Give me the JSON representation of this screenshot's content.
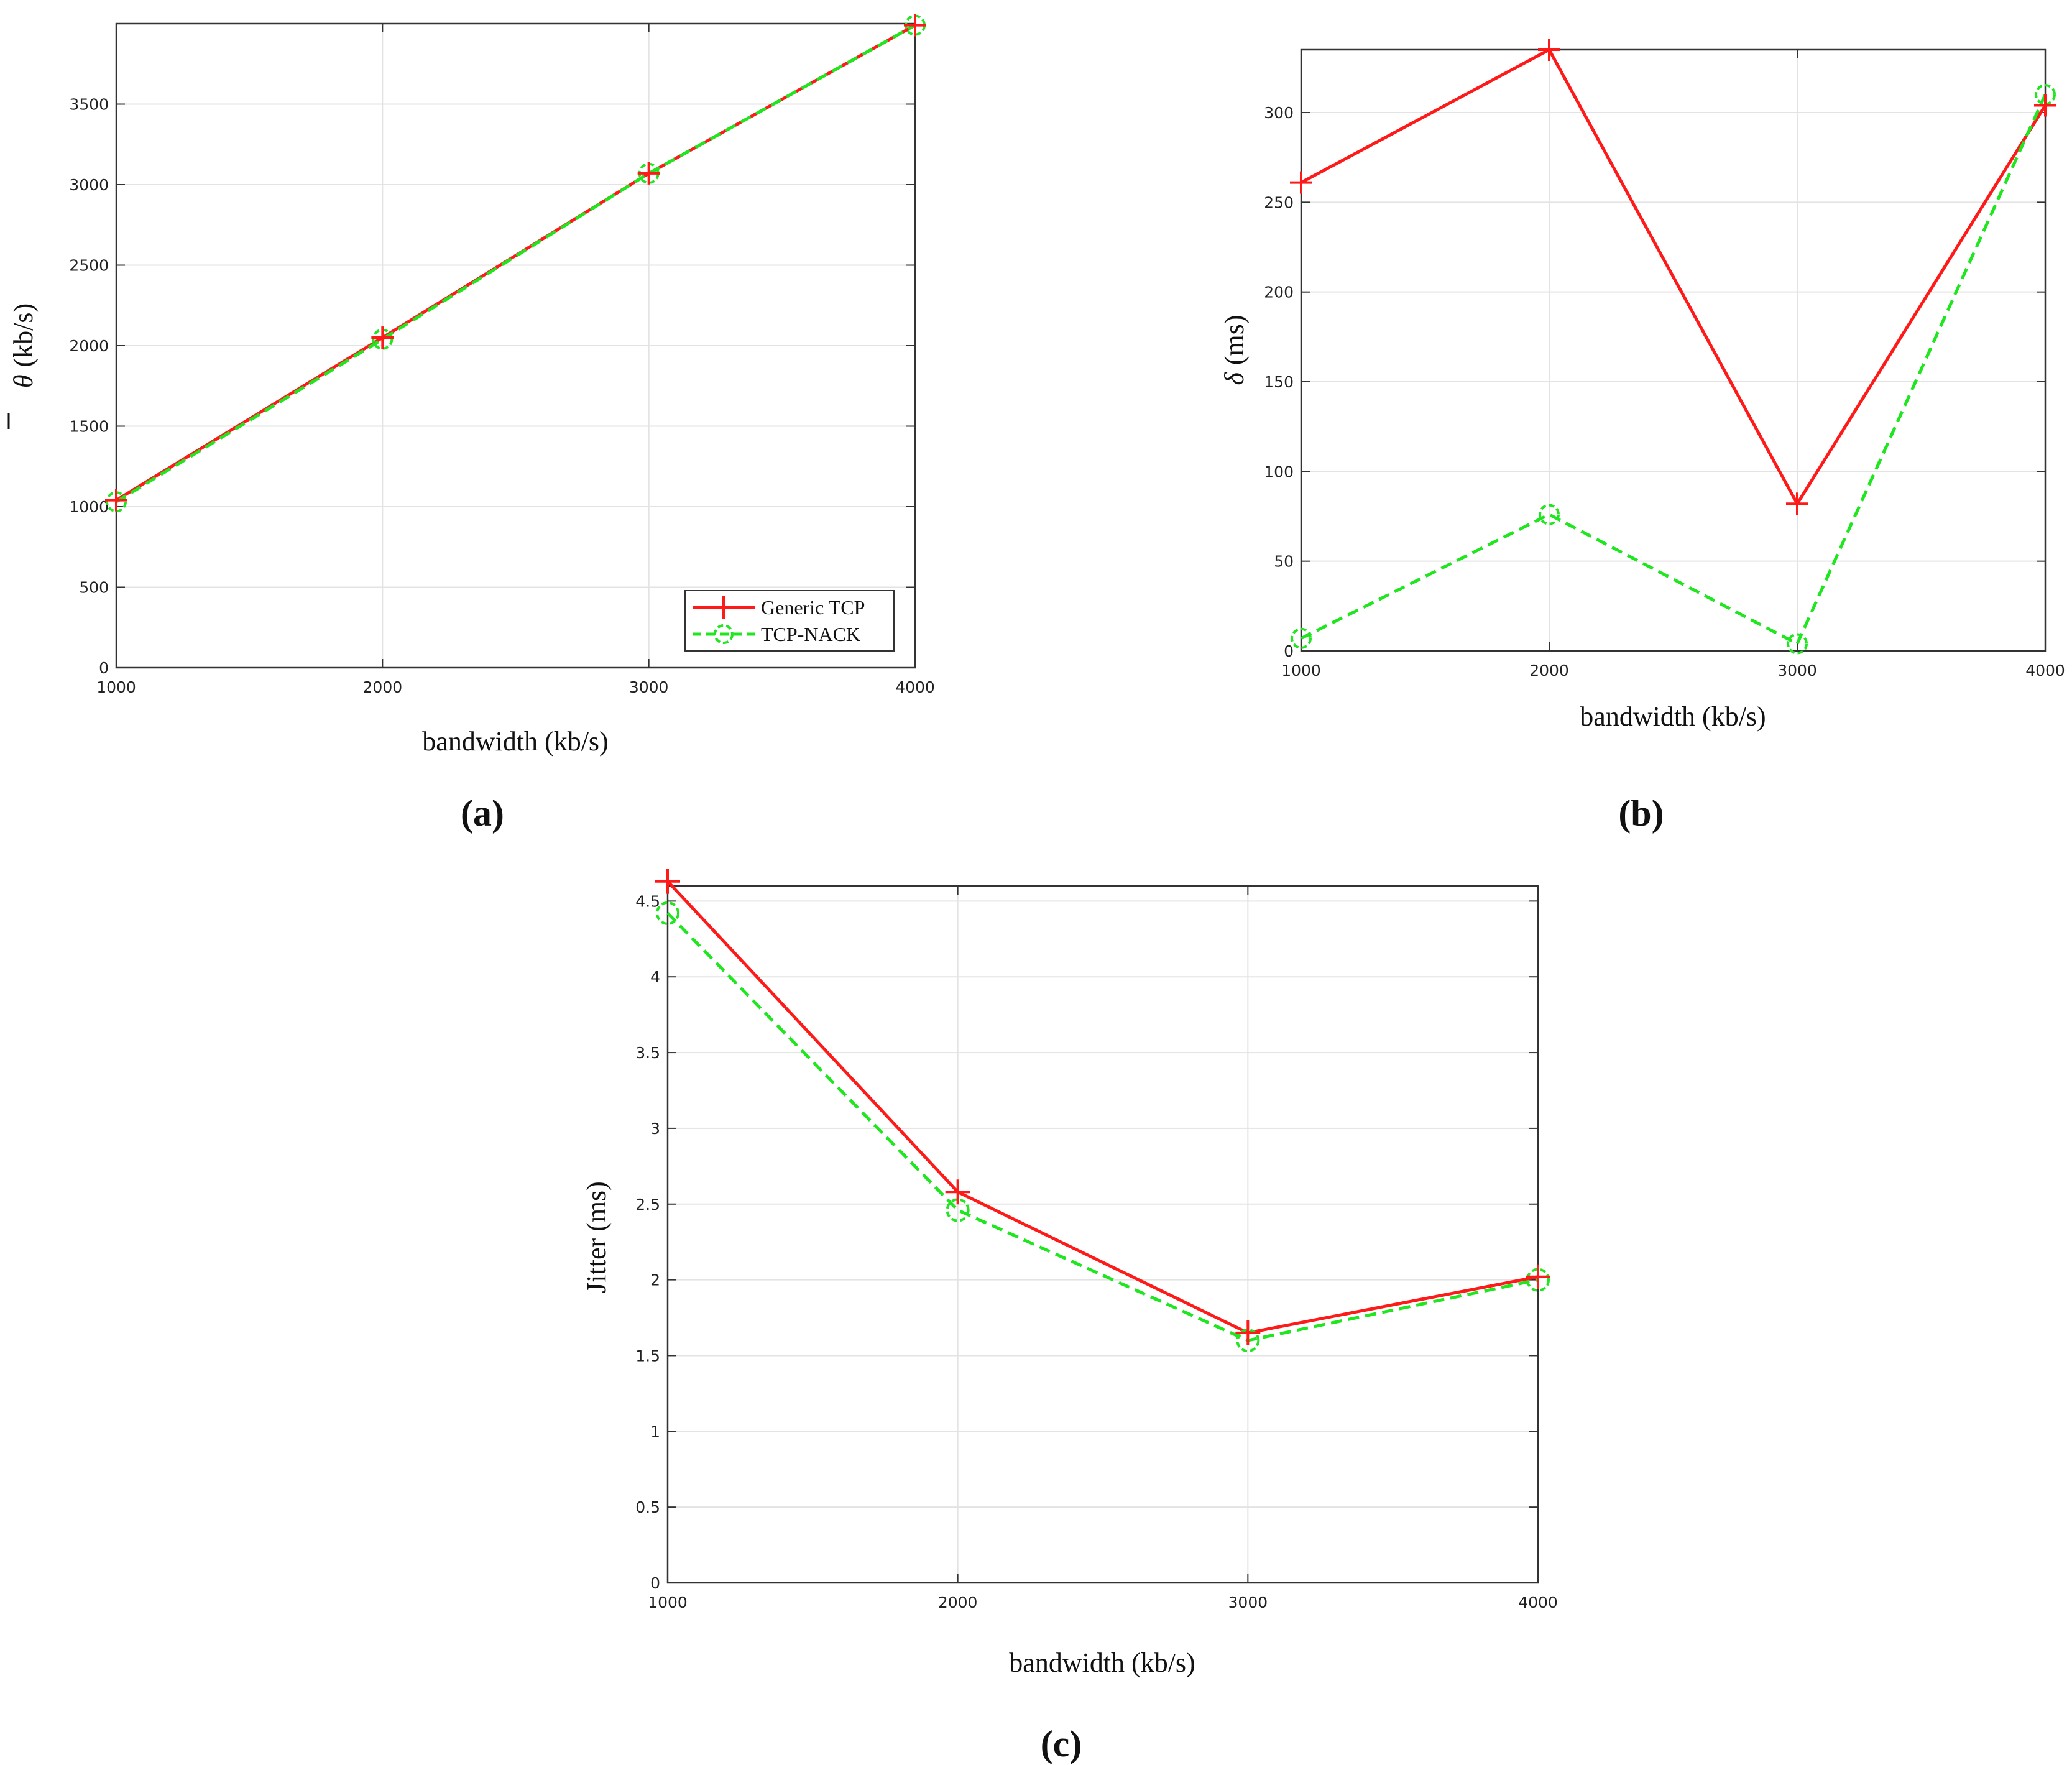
{
  "colors": {
    "generic_tcp": "#ff1a1a",
    "tcp_nack": "#1fe61f",
    "grid": "#e3e3e3",
    "axis": "#333333"
  },
  "chart_data": [
    {
      "type": "line",
      "panel_label": "(a)",
      "title": "",
      "xlabel": "bandwidth (kb/s)",
      "ylabel_symbol": "θ",
      "ylabel_unit": "(kb/s)",
      "x": [
        1000,
        2000,
        3000,
        4000
      ],
      "xlim": [
        1000,
        4000
      ],
      "ylim": [
        0,
        4000
      ],
      "xticks": [
        "1000",
        "2000",
        "3000",
        "4000"
      ],
      "yticks": [
        "0",
        "500",
        "1000",
        "1500",
        "2000",
        "2500",
        "3000",
        "3500"
      ],
      "grid": true,
      "legend": {
        "position": "bottom-right",
        "entries": [
          "Generic TCP",
          "TCP-NACK"
        ]
      },
      "series": [
        {
          "name": "Generic TCP",
          "marker": "plus",
          "style": "solid",
          "values": [
            1040,
            2050,
            3070,
            3990
          ]
        },
        {
          "name": "TCP-NACK",
          "marker": "circle",
          "style": "dashed",
          "values": [
            1030,
            2040,
            3070,
            3990
          ]
        }
      ]
    },
    {
      "type": "line",
      "panel_label": "(b)",
      "title": "",
      "xlabel": "bandwidth (kb/s)",
      "ylabel_symbol": "δ",
      "ylabel_unit": "(ms)",
      "x": [
        1000,
        2000,
        3000,
        4000
      ],
      "xlim": [
        1000,
        4000
      ],
      "ylim": [
        0,
        335
      ],
      "xticks": [
        "1000",
        "2000",
        "3000",
        "4000"
      ],
      "yticks": [
        "0",
        "50",
        "100",
        "150",
        "200",
        "250",
        "300"
      ],
      "grid": true,
      "series": [
        {
          "name": "Generic TCP",
          "marker": "plus",
          "style": "solid",
          "values": [
            261,
            335,
            82,
            304
          ]
        },
        {
          "name": "TCP-NACK",
          "marker": "circle",
          "style": "dashed",
          "values": [
            7,
            76,
            4,
            310
          ]
        }
      ]
    },
    {
      "type": "line",
      "panel_label": "(c)",
      "title": "",
      "xlabel": "bandwidth (kb/s)",
      "ylabel": "Jitter (ms)",
      "x": [
        1000,
        2000,
        3000,
        4000
      ],
      "xlim": [
        1000,
        4000
      ],
      "ylim": [
        0,
        4.6
      ],
      "xticks": [
        "1000",
        "2000",
        "3000",
        "4000"
      ],
      "yticks": [
        "0",
        "0.5",
        "1",
        "1.5",
        "2",
        "2.5",
        "3",
        "3.5",
        "4",
        "4.5"
      ],
      "grid": true,
      "series": [
        {
          "name": "Generic TCP",
          "marker": "plus",
          "style": "solid",
          "values": [
            4.63,
            2.58,
            1.65,
            2.02
          ]
        },
        {
          "name": "TCP-NACK",
          "marker": "circle",
          "style": "dashed",
          "values": [
            4.42,
            2.46,
            1.6,
            2.0
          ]
        }
      ]
    }
  ]
}
